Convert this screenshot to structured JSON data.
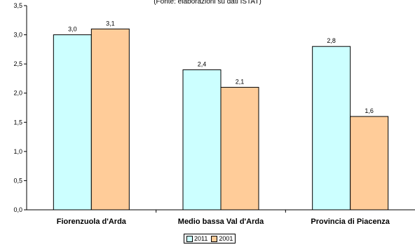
{
  "chart_data": {
    "type": "bar",
    "subtitle": "(Fonte: elaborazioni su dati ISTAT)",
    "categories": [
      "Fiorenzuola d'Arda",
      "Medio bassa Val d'Arda",
      "Provincia di Piacenza"
    ],
    "series": [
      {
        "name": "2011",
        "values": [
          3.0,
          2.4,
          2.8
        ],
        "labels": [
          "3,0",
          "2,4",
          "2,8"
        ],
        "color": "#ccffff"
      },
      {
        "name": "2001",
        "values": [
          3.1,
          2.1,
          1.6
        ],
        "labels": [
          "3,1",
          "2,1",
          "1,6"
        ],
        "color": "#ffcc99"
      }
    ],
    "ylim": [
      0,
      3.5
    ],
    "yticks": [
      "0,0",
      "0,5",
      "1,0",
      "1,5",
      "2,0",
      "2,5",
      "3,0",
      "3,5"
    ],
    "xlabel": "",
    "ylabel": "",
    "grid": false,
    "legend_position": "bottom"
  }
}
